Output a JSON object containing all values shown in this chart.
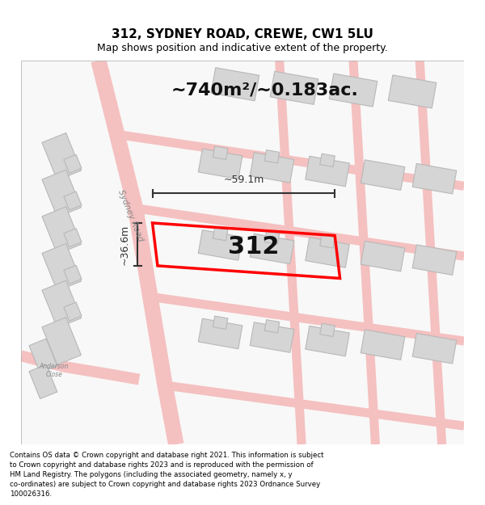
{
  "title_line1": "312, SYDNEY ROAD, CREWE, CW1 5LU",
  "title_line2": "Map shows position and indicative extent of the property.",
  "area_text": "~740m²/~0.183ac.",
  "dim_width": "~59.1m",
  "dim_height": "~36.6m",
  "label_312": "312",
  "disclaimer": "Contains OS data © Crown copyright and database right 2021. This information is subject\nto Crown copyright and database rights 2023 and is reproduced with the permission of\nHM Land Registry. The polygons (including the associated geometry, namely x, y\nco-ordinates) are subject to Crown copyright and database rights 2023 Ordnance Survey\n100026316.",
  "bg_color": "#ffffff",
  "map_bg": "#f5f5f5",
  "road_color": "#f5c0c0",
  "building_color": "#e0e0e0",
  "property_color": "#ff0000",
  "dim_color": "#333333",
  "title_color": "#000000",
  "disclaimer_color": "#000000"
}
